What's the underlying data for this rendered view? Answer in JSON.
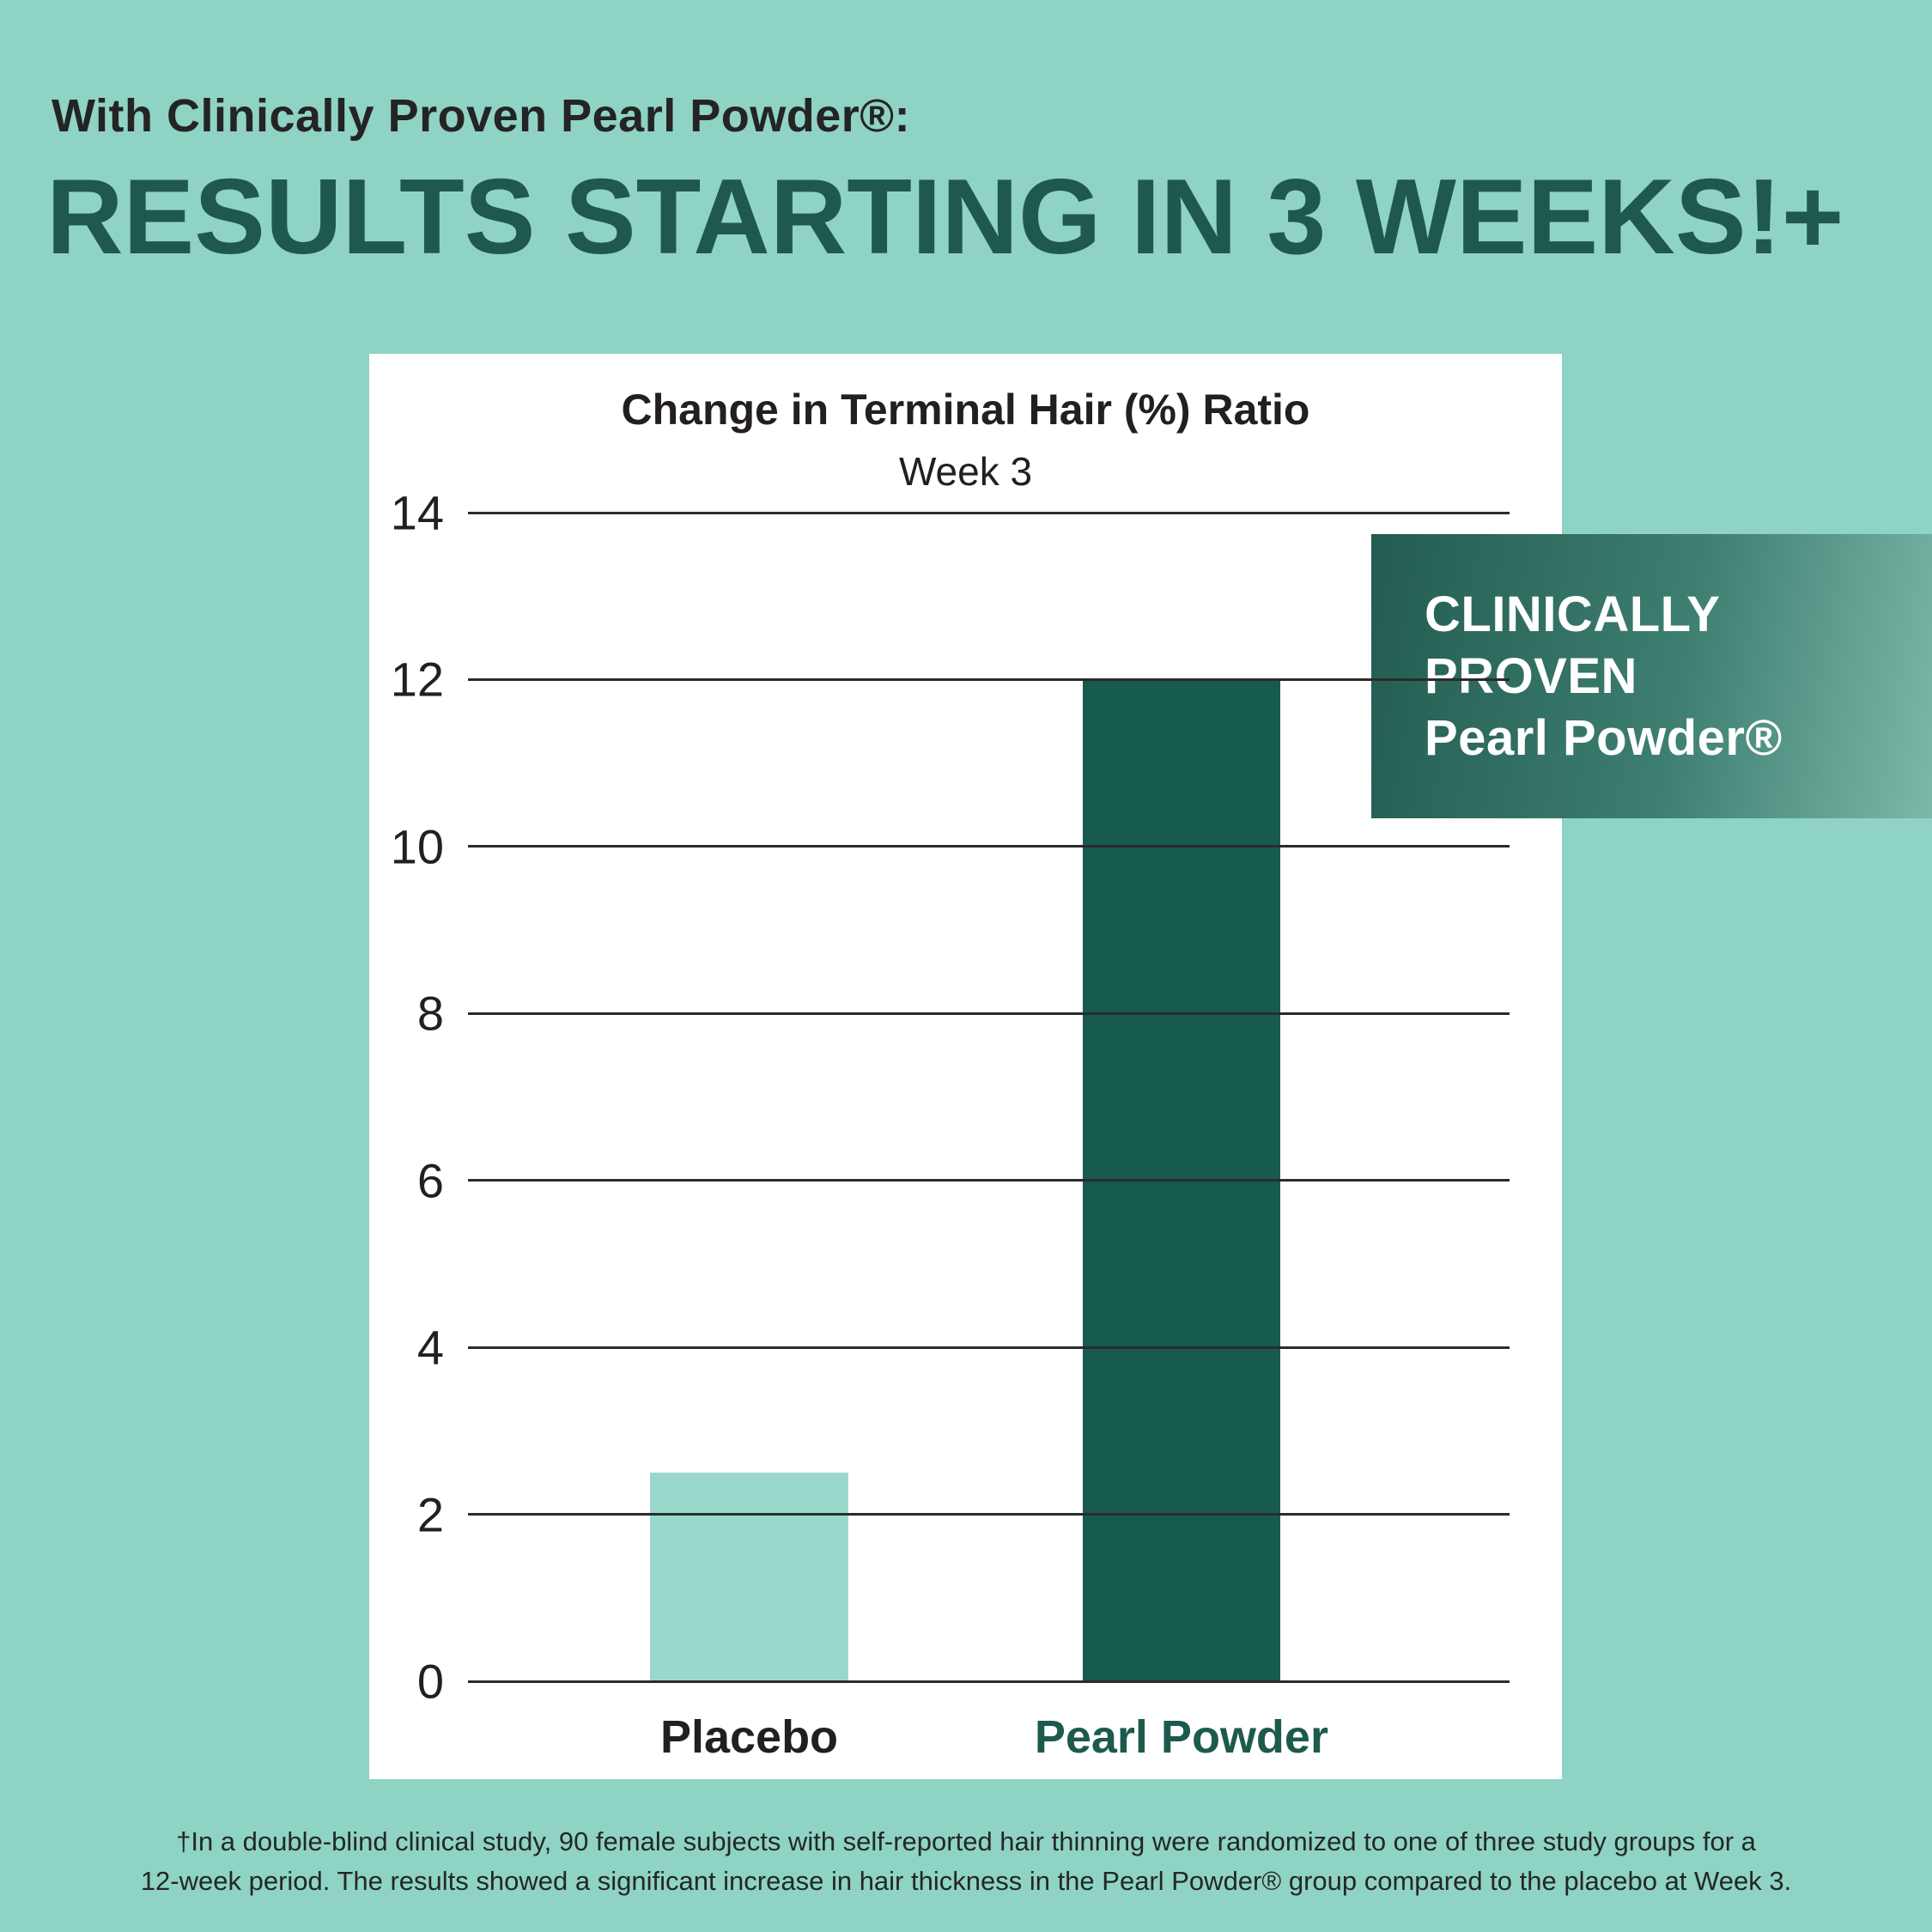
{
  "page": {
    "eyebrow": "With Clinically Proven Pearl Powder®:",
    "headline": "RESULTS STARTING IN 3 WEEKS!+",
    "footnote_lines": [
      "†In a double-blind clinical study, 90 female subjects with self-reported hair thinning were randomized to one of three study groups for a",
      "12-week period. The results showed a significant increase in hair thickness in the Pearl Powder® group compared to the placebo at Week 3."
    ]
  },
  "badge": {
    "lines": [
      "CLINICALLY",
      "PROVEN",
      "Pearl Powder®"
    ]
  },
  "colors": {
    "background": "#8fd3c4",
    "card": "#ffffff",
    "eyebrow_text": "#242424",
    "headline": "#1f584e",
    "gridline": "#2b2b2b",
    "tick_label": "#231f20",
    "badge_text": "#ffffff",
    "badge_gradient_start": "#235c50",
    "badge_gradient_end": "#7db8a9",
    "footnote_text": "#232824"
  },
  "chart_data": {
    "type": "bar",
    "title": "Change in Terminal Hair (%) Ratio",
    "subtitle": "Week 3",
    "categories": [
      "Placebo",
      "Pearl Powder"
    ],
    "values": [
      2.5,
      12
    ],
    "bar_colors": [
      "#98d9cb",
      "#175a4e"
    ],
    "category_label_colors": [
      "#231f20",
      "#1d5a4e"
    ],
    "ylim": [
      0,
      14
    ],
    "yticks": [
      0,
      2,
      4,
      6,
      8,
      10,
      12,
      14
    ],
    "ytick_step": 2,
    "grid": true,
    "legend": "none",
    "annotations": [
      "CLINICALLY PROVEN Pearl Powder®"
    ]
  }
}
